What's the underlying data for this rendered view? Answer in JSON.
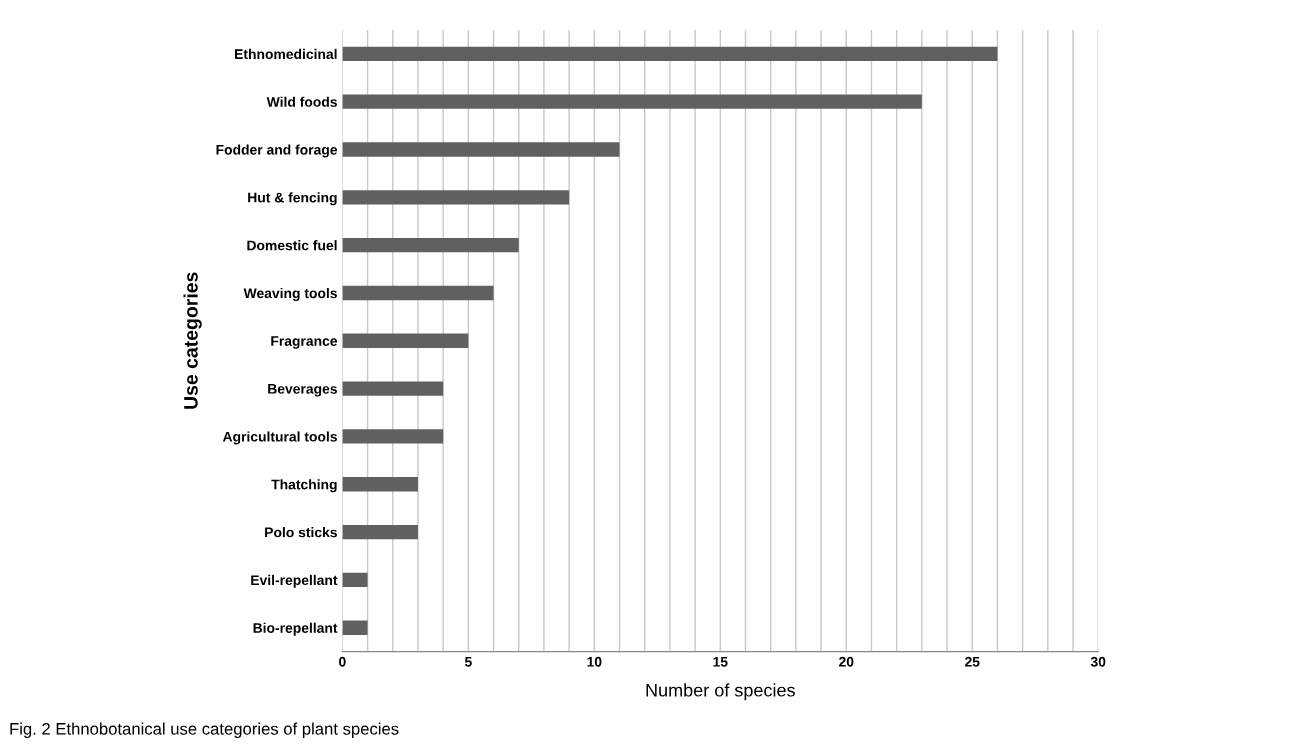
{
  "chart_data": {
    "type": "bar",
    "orientation": "horizontal",
    "xlabel": "Number of species",
    "ylabel": "Use categories",
    "categories": [
      "Ethnomedicinal",
      "Wild foods",
      "Fodder and forage",
      "Hut & fencing",
      "Domestic fuel",
      "Weaving tools",
      "Fragrance",
      "Beverages",
      "Agricultural tools",
      "Thatching",
      "Polo sticks",
      "Evil-repellant",
      "Bio-repellant"
    ],
    "values": [
      26,
      23,
      11,
      9,
      7,
      6,
      5,
      4,
      4,
      3,
      3,
      1,
      1
    ],
    "color": "#606060",
    "xlim": [
      0,
      30
    ],
    "xticks": [
      0,
      {
        "value": 1,
        "label": null
      },
      {
        "value": 2,
        "label": null
      },
      {
        "value": 3,
        "label": null
      },
      {
        "value": 4,
        "label": null
      },
      5,
      {
        "value": 6,
        "label": null
      },
      {
        "value": 7,
        "label": null
      },
      {
        "value": 8,
        "label": null
      },
      {
        "value": 9,
        "label": null
      },
      10,
      {
        "value": 11,
        "label": null
      },
      {
        "value": 12,
        "label": null
      },
      {
        "value": 13,
        "label": null
      },
      {
        "value": 14,
        "label": null
      },
      15,
      {
        "value": 16,
        "label": null
      },
      {
        "value": 17,
        "label": null
      },
      {
        "value": 18,
        "label": null
      },
      {
        "value": 19,
        "label": null
      },
      20,
      {
        "value": 21,
        "label": null
      },
      {
        "value": 22,
        "label": null
      },
      {
        "value": 23,
        "label": null
      },
      {
        "value": 24,
        "label": null
      },
      25,
      {
        "value": 26,
        "label": null
      },
      {
        "value": 27,
        "label": null
      },
      {
        "value": 28,
        "label": null
      },
      {
        "value": 29,
        "label": null
      },
      30
    ],
    "grid": "x",
    "annotations": [
      "Fig. 2 Ethnobotanical use categories of plant species"
    ]
  }
}
